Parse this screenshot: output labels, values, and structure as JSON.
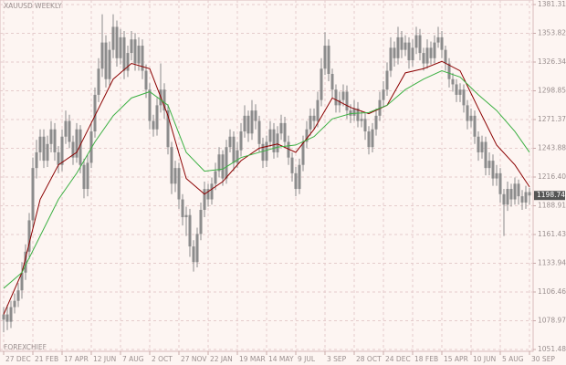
{
  "chart_data": {
    "type": "candlestick",
    "title": "XAUUSD WEEKLY",
    "watermark": "FOREXCHIEF",
    "last_price": 1198.74,
    "candle_color": "#8c8c8c",
    "grid": true,
    "xlim": [
      -1,
      145
    ],
    "ylim": [
      1051.48,
      1381.31
    ],
    "xticks": [
      {
        "value": 0,
        "label": "27 DEC"
      },
      {
        "value": 8,
        "label": "21 FEB"
      },
      {
        "value": 16,
        "label": "17 APR"
      },
      {
        "value": 24,
        "label": "12 JUN"
      },
      {
        "value": 32,
        "label": "7 AUG"
      },
      {
        "value": 40,
        "label": "2 OCT"
      },
      {
        "value": 48,
        "label": "27 NOV"
      },
      {
        "value": 56,
        "label": "22 JAN"
      },
      {
        "value": 64,
        "label": "19 MAR"
      },
      {
        "value": 72,
        "label": "14 MAY"
      },
      {
        "value": 80,
        "label": "9 JUL"
      },
      {
        "value": 88,
        "label": "3 SEP"
      },
      {
        "value": 96,
        "label": "28 OCT"
      },
      {
        "value": 104,
        "label": "24 DEC"
      },
      {
        "value": 112,
        "label": "18 FEB"
      },
      {
        "value": 120,
        "label": "15 APR"
      },
      {
        "value": 128,
        "label": "10 JUN"
      },
      {
        "value": 136,
        "label": "5 AUG"
      },
      {
        "value": 144,
        "label": "30 SEP"
      }
    ],
    "yticks": [
      1381.31,
      1353.82,
      1326.34,
      1298.85,
      1271.37,
      1243.88,
      {
        "value": 1216.4,
        "label": "1216.40"
      },
      1188.91,
      1161.43,
      1133.94,
      1106.46,
      1078.97,
      1051.48
    ],
    "open": [
      1080,
      1085,
      1078,
      1092,
      1098,
      1108,
      1125,
      1145,
      1175,
      1225,
      1240,
      1255,
      1232,
      1248,
      1262,
      1240,
      1228,
      1255,
      1270,
      1250,
      1235,
      1262,
      1228,
      1205,
      1230,
      1260,
      1295,
      1320,
      1345,
      1310,
      1338,
      1360,
      1330,
      1350,
      1318,
      1335,
      1348,
      1325,
      1342,
      1318,
      1300,
      1270,
      1262,
      1285,
      1300,
      1280,
      1245,
      1210,
      1225,
      1195,
      1178,
      1180,
      1150,
      1135,
      1162,
      1185,
      1205,
      1195,
      1210,
      1222,
      1238,
      1215,
      1245,
      1255,
      1230,
      1242,
      1260,
      1275,
      1258,
      1280,
      1270,
      1248,
      1232,
      1250,
      1262,
      1240,
      1258,
      1268,
      1250,
      1235,
      1220,
      1205,
      1228,
      1250,
      1262,
      1275,
      1270,
      1290,
      1320,
      1342,
      1315,
      1300,
      1285,
      1290,
      1298,
      1280,
      1275,
      1282,
      1270,
      1272,
      1260,
      1245,
      1262,
      1275,
      1290,
      1300,
      1318,
      1340,
      1330,
      1350,
      1338,
      1345,
      1328,
      1340,
      1352,
      1335,
      1325,
      1340,
      1330,
      1345,
      1350,
      1338,
      1325,
      1310,
      1305,
      1295,
      1300,
      1285,
      1270,
      1275,
      1255,
      1240,
      1250,
      1225,
      1232,
      1215,
      1220,
      1200,
      1190,
      1205,
      1195,
      1210,
      1198,
      1192,
      1202
    ],
    "high": [
      1092,
      1094,
      1098,
      1105,
      1115,
      1135,
      1152,
      1182,
      1235,
      1252,
      1262,
      1262,
      1256,
      1270,
      1268,
      1246,
      1262,
      1280,
      1276,
      1256,
      1268,
      1266,
      1234,
      1238,
      1268,
      1302,
      1330,
      1372,
      1352,
      1346,
      1372,
      1366,
      1358,
      1356,
      1342,
      1356,
      1354,
      1350,
      1348,
      1324,
      1306,
      1276,
      1292,
      1325,
      1306,
      1286,
      1250,
      1232,
      1230,
      1200,
      1188,
      1186,
      1156,
      1168,
      1192,
      1212,
      1210,
      1216,
      1230,
      1245,
      1242,
      1252,
      1262,
      1260,
      1250,
      1268,
      1285,
      1280,
      1290,
      1286,
      1275,
      1254,
      1256,
      1270,
      1268,
      1265,
      1276,
      1274,
      1256,
      1240,
      1226,
      1234,
      1256,
      1270,
      1282,
      1282,
      1298,
      1330,
      1355,
      1348,
      1320,
      1305,
      1298,
      1305,
      1304,
      1286,
      1290,
      1288,
      1280,
      1278,
      1265,
      1268,
      1282,
      1298,
      1308,
      1326,
      1350,
      1346,
      1360,
      1356,
      1352,
      1350,
      1348,
      1360,
      1358,
      1340,
      1348,
      1346,
      1352,
      1360,
      1356,
      1342,
      1330,
      1316,
      1310,
      1306,
      1305,
      1290,
      1282,
      1280,
      1260,
      1256,
      1255,
      1240,
      1238,
      1228,
      1225,
      1205,
      1212,
      1210,
      1216,
      1214,
      1204,
      1208,
      1206
    ],
    "low": [
      1068,
      1070,
      1072,
      1086,
      1092,
      1100,
      1118,
      1138,
      1168,
      1215,
      1232,
      1225,
      1226,
      1240,
      1232,
      1220,
      1222,
      1248,
      1244,
      1228,
      1230,
      1220,
      1196,
      1198,
      1225,
      1254,
      1288,
      1312,
      1302,
      1304,
      1330,
      1322,
      1324,
      1310,
      1312,
      1328,
      1318,
      1318,
      1310,
      1292,
      1262,
      1255,
      1256,
      1278,
      1272,
      1238,
      1200,
      1202,
      1186,
      1170,
      1160,
      1140,
      1126,
      1130,
      1156,
      1178,
      1188,
      1190,
      1204,
      1216,
      1208,
      1210,
      1240,
      1222,
      1225,
      1236,
      1254,
      1250,
      1252,
      1262,
      1240,
      1225,
      1226,
      1245,
      1234,
      1235,
      1252,
      1244,
      1228,
      1212,
      1198,
      1200,
      1222,
      1244,
      1256,
      1262,
      1264,
      1284,
      1314,
      1308,
      1292,
      1278,
      1278,
      1284,
      1272,
      1268,
      1270,
      1264,
      1264,
      1252,
      1238,
      1240,
      1256,
      1270,
      1284,
      1294,
      1312,
      1322,
      1324,
      1330,
      1332,
      1320,
      1322,
      1334,
      1328,
      1318,
      1320,
      1324,
      1325,
      1340,
      1330,
      1318,
      1302,
      1298,
      1288,
      1288,
      1278,
      1262,
      1264,
      1248,
      1232,
      1234,
      1218,
      1218,
      1208,
      1208,
      1192,
      1160,
      1184,
      1188,
      1190,
      1190,
      1185,
      1186,
      1190
    ],
    "close": [
      1085,
      1078,
      1092,
      1098,
      1108,
      1125,
      1145,
      1175,
      1225,
      1240,
      1255,
      1232,
      1248,
      1262,
      1240,
      1228,
      1255,
      1270,
      1250,
      1235,
      1262,
      1228,
      1205,
      1230,
      1260,
      1295,
      1320,
      1345,
      1310,
      1338,
      1360,
      1330,
      1350,
      1318,
      1335,
      1348,
      1325,
      1342,
      1318,
      1300,
      1270,
      1262,
      1285,
      1300,
      1280,
      1245,
      1210,
      1225,
      1195,
      1178,
      1180,
      1150,
      1135,
      1162,
      1185,
      1205,
      1195,
      1210,
      1222,
      1238,
      1215,
      1245,
      1255,
      1230,
      1242,
      1260,
      1275,
      1258,
      1280,
      1270,
      1248,
      1232,
      1250,
      1262,
      1240,
      1258,
      1268,
      1250,
      1235,
      1220,
      1205,
      1228,
      1250,
      1262,
      1275,
      1270,
      1290,
      1320,
      1342,
      1315,
      1300,
      1285,
      1290,
      1298,
      1280,
      1275,
      1282,
      1270,
      1272,
      1260,
      1245,
      1262,
      1275,
      1290,
      1300,
      1318,
      1340,
      1330,
      1350,
      1338,
      1345,
      1328,
      1340,
      1352,
      1335,
      1325,
      1340,
      1330,
      1345,
      1350,
      1338,
      1325,
      1310,
      1305,
      1295,
      1300,
      1285,
      1270,
      1275,
      1255,
      1240,
      1250,
      1225,
      1232,
      1215,
      1220,
      1200,
      1190,
      1205,
      1195,
      1210,
      1198,
      1192,
      1202,
      1198.74
    ],
    "series": [
      {
        "color": "#8b0000",
        "x": [
          0,
          5,
          10,
          15,
          20,
          25,
          30,
          35,
          40,
          45,
          50,
          55,
          60,
          65,
          70,
          75,
          80,
          85,
          90,
          95,
          100,
          105,
          110,
          115,
          120,
          125,
          130,
          135,
          140,
          144
        ],
        "values": [
          1085,
          1125,
          1195,
          1228,
          1240,
          1275,
          1310,
          1325,
          1320,
          1275,
          1215,
          1200,
          1212,
          1232,
          1244,
          1248,
          1240,
          1262,
          1292,
          1283,
          1277,
          1285,
          1316,
          1320,
          1327,
          1318,
          1282,
          1247,
          1228,
          1207
        ]
      },
      {
        "color": "#3cb043",
        "x": [
          0,
          5,
          10,
          15,
          20,
          25,
          30,
          35,
          40,
          45,
          50,
          55,
          60,
          65,
          70,
          75,
          80,
          85,
          90,
          95,
          100,
          105,
          110,
          115,
          120,
          125,
          130,
          135,
          140,
          144
        ],
        "values": [
          1110,
          1125,
          1160,
          1195,
          1220,
          1250,
          1275,
          1292,
          1298,
          1285,
          1240,
          1222,
          1224,
          1235,
          1240,
          1245,
          1247,
          1255,
          1272,
          1277,
          1278,
          1285,
          1300,
          1310,
          1318,
          1312,
          1295,
          1280,
          1260,
          1240
        ]
      }
    ]
  }
}
